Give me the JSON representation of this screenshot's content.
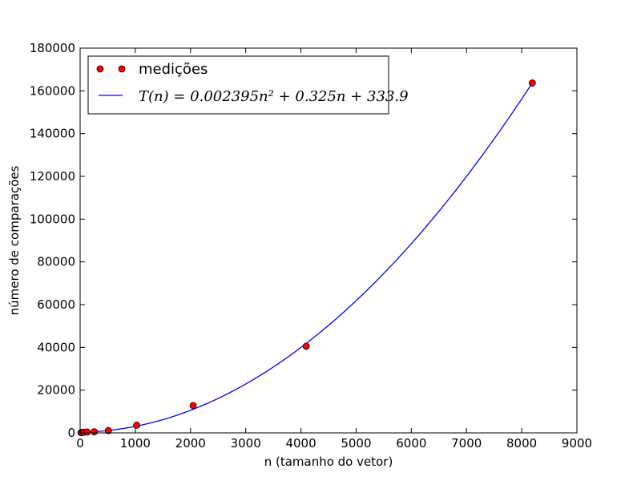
{
  "chart_data": {
    "type": "scatter",
    "title": "",
    "xlabel": "n (tamanho do vetor)",
    "ylabel": "número de comparações",
    "xlim": [
      0,
      9000
    ],
    "ylim": [
      0,
      180000
    ],
    "xticks": [
      0,
      1000,
      2000,
      3000,
      4000,
      5000,
      6000,
      7000,
      8000,
      9000
    ],
    "yticks": [
      0,
      20000,
      40000,
      60000,
      80000,
      100000,
      120000,
      140000,
      160000,
      180000
    ],
    "grid": false,
    "legend_position": "top-left",
    "series": [
      {
        "name": "medições",
        "kind": "scatter",
        "color": "#ff0000",
        "x": [
          16,
          32,
          64,
          128,
          256,
          512,
          1024,
          2048,
          4096,
          8192
        ],
        "y": [
          120,
          200,
          300,
          400,
          500,
          1100,
          3600,
          12800,
          40500,
          163700
        ]
      },
      {
        "name": "T(n) = 0.002395n² + 0.325n + 333.9",
        "kind": "line",
        "color": "#0000ff",
        "fit": {
          "a": 0.002395,
          "b": 0.325,
          "c": 333.9
        },
        "x_range": [
          16,
          8192
        ]
      }
    ]
  }
}
